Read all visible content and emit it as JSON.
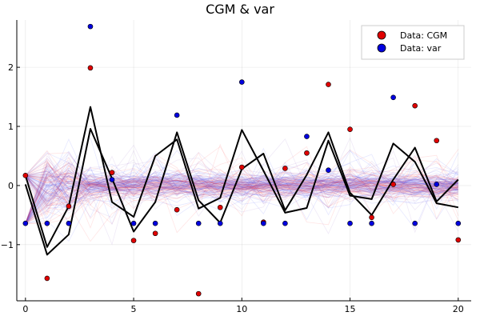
{
  "chart_data": {
    "type": "scatter",
    "title": "CGM & var",
    "xlabel": "",
    "ylabel": "",
    "xlim": [
      -0.4,
      20.6
    ],
    "ylim": [
      -1.95,
      2.8
    ],
    "grid": true,
    "legend_position": "top-right",
    "x_ticks": [
      0,
      5,
      10,
      15,
      20
    ],
    "x_tick_labels": [
      "0",
      "5",
      "10",
      "15",
      "20"
    ],
    "y_ticks": [
      -1,
      0,
      1,
      2
    ],
    "y_tick_labels": [
      "−1",
      "0",
      "1",
      "2"
    ],
    "series": [
      {
        "name": "Data: CGM",
        "kind": "scatter",
        "color": "#e00000",
        "x": [
          0,
          1,
          2,
          3,
          4,
          5,
          6,
          7,
          8,
          9,
          10,
          11,
          12,
          13,
          14,
          15,
          16,
          17,
          18,
          19,
          20
        ],
        "y": [
          0.17,
          -1.57,
          -0.35,
          1.99,
          0.22,
          -0.93,
          -0.81,
          -0.41,
          -1.83,
          -0.37,
          0.31,
          -0.62,
          0.29,
          0.55,
          1.71,
          0.95,
          -0.54,
          0.02,
          1.35,
          0.76,
          -0.92
        ]
      },
      {
        "name": "Data: var",
        "kind": "scatter",
        "color": "#0000e0",
        "x": [
          0,
          1,
          2,
          3,
          4,
          5,
          6,
          7,
          8,
          9,
          10,
          11,
          12,
          13,
          14,
          15,
          16,
          17,
          18,
          19,
          20
        ],
        "y": [
          -0.64,
          -0.64,
          -0.64,
          2.69,
          0.1,
          -0.64,
          -0.64,
          1.19,
          -0.64,
          -0.64,
          1.75,
          -0.64,
          -0.64,
          0.83,
          0.26,
          -0.64,
          -0.64,
          1.49,
          -0.64,
          0.02,
          -0.64
        ]
      },
      {
        "kind": "line",
        "color": "#000000",
        "x": [
          0,
          1,
          2,
          3,
          4,
          5,
          6,
          7,
          8,
          9,
          10,
          11,
          12,
          13,
          14,
          15,
          16,
          17,
          18,
          19,
          20
        ],
        "y": [
          0.17,
          -1.04,
          -0.35,
          1.33,
          -0.28,
          -0.53,
          0.5,
          0.78,
          -0.39,
          -0.21,
          0.94,
          0.25,
          -0.46,
          -0.38,
          0.76,
          -0.17,
          -0.23,
          0.71,
          0.4,
          -0.3,
          -0.37
        ]
      },
      {
        "kind": "line",
        "color": "#000000",
        "x": [
          0,
          1,
          2,
          3,
          4,
          5,
          6,
          7,
          8,
          9,
          10,
          11,
          12,
          13,
          14,
          15,
          16,
          17,
          18,
          19,
          20
        ],
        "y": [
          0.02,
          -1.17,
          -0.83,
          0.96,
          0.12,
          -0.78,
          -0.28,
          0.9,
          -0.25,
          -0.63,
          0.28,
          0.54,
          -0.42,
          0.18,
          0.9,
          -0.12,
          -0.5,
          0.1,
          0.64,
          -0.27,
          0.1
        ]
      }
    ],
    "ensemble_colors": {
      "red": "#ff3030",
      "blue": "#3040ff",
      "purple": "#8050c0"
    }
  }
}
